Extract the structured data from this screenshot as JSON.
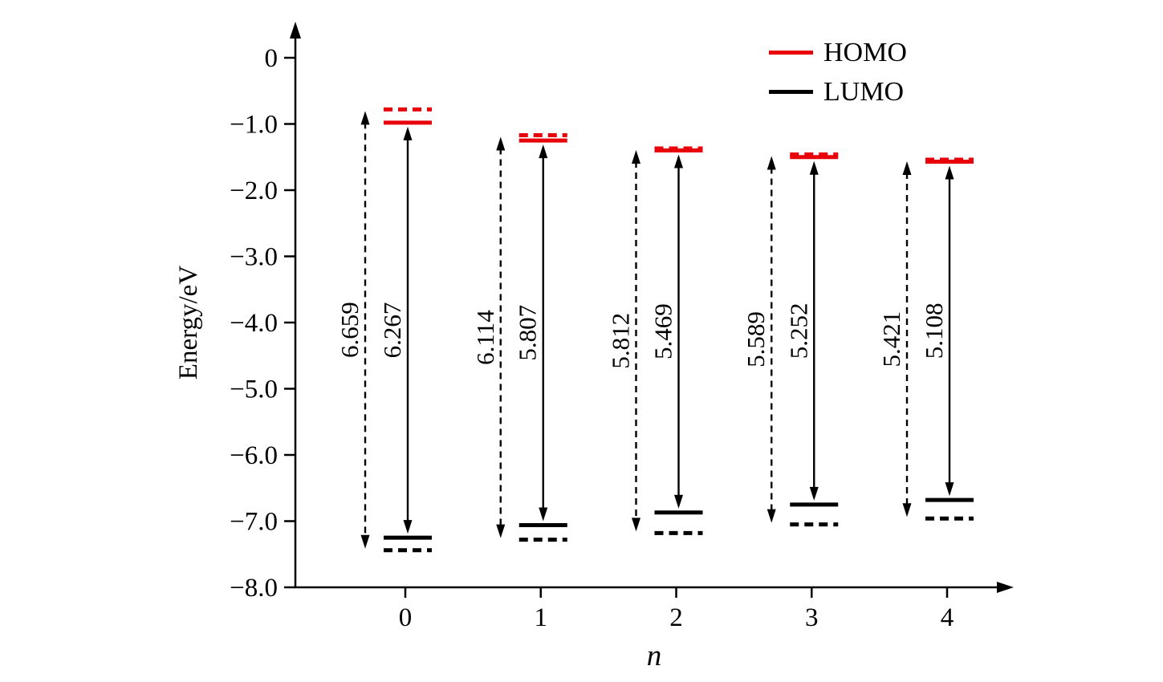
{
  "page": {
    "background": "#ffffff"
  },
  "legend": {
    "items": [
      {
        "label": "HOMO",
        "color": "#e8000b"
      },
      {
        "label": "LUMO",
        "color": "#000000"
      }
    ]
  },
  "chart_data": {
    "type": "energy-level-diagram",
    "title": "",
    "xlabel": "n",
    "ylabel": "Energy/eV",
    "ylim": [
      -8.0,
      0
    ],
    "grid": false,
    "legend_position": "upper right",
    "yticks": [
      0,
      -1.0,
      -2.0,
      -3.0,
      -4.0,
      -5.0,
      -6.0,
      -7.0,
      -8.0
    ],
    "ytick_labels": [
      "0",
      "−1.0",
      "−2.0",
      "−3.0",
      "−4.0",
      "−5.0",
      "−6.0",
      "−7.0",
      "−8.0"
    ],
    "categories": [
      "0",
      "1",
      "2",
      "3",
      "4"
    ],
    "series": [
      {
        "name": "solid-levels",
        "line_style": "solid",
        "homo_color": "#e8000b",
        "lumo_color": "#000000",
        "points": [
          {
            "n": 0,
            "homo_eV": -0.98,
            "lumo_eV": -7.25,
            "gap_eV": 6.267,
            "gap_label": "6.267"
          },
          {
            "n": 1,
            "homo_eV": -1.25,
            "lumo_eV": -7.06,
            "gap_eV": 5.807,
            "gap_label": "5.807"
          },
          {
            "n": 2,
            "homo_eV": -1.4,
            "lumo_eV": -6.87,
            "gap_eV": 5.469,
            "gap_label": "5.469"
          },
          {
            "n": 3,
            "homo_eV": -1.5,
            "lumo_eV": -6.75,
            "gap_eV": 5.252,
            "gap_label": "5.252"
          },
          {
            "n": 4,
            "homo_eV": -1.57,
            "lumo_eV": -6.68,
            "gap_eV": 5.108,
            "gap_label": "5.108"
          }
        ]
      },
      {
        "name": "dashed-levels",
        "line_style": "dashed",
        "homo_color": "#e8000b",
        "lumo_color": "#000000",
        "points": [
          {
            "n": 0,
            "homo_eV": -0.78,
            "lumo_eV": -7.44,
            "gap_eV": 6.659,
            "gap_label": "6.659"
          },
          {
            "n": 1,
            "homo_eV": -1.17,
            "lumo_eV": -7.28,
            "gap_eV": 6.114,
            "gap_label": "6.114"
          },
          {
            "n": 2,
            "homo_eV": -1.37,
            "lumo_eV": -7.18,
            "gap_eV": 5.812,
            "gap_label": "5.812"
          },
          {
            "n": 3,
            "homo_eV": -1.46,
            "lumo_eV": -7.05,
            "gap_eV": 5.589,
            "gap_label": "5.589"
          },
          {
            "n": 4,
            "homo_eV": -1.54,
            "lumo_eV": -6.96,
            "gap_eV": 5.421,
            "gap_label": "5.421"
          }
        ]
      }
    ]
  }
}
